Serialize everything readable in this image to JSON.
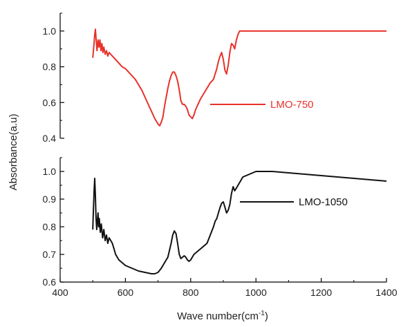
{
  "chart_data": [
    {
      "type": "line",
      "panel": "top",
      "ylim": [
        0.4,
        1.1
      ],
      "yticks": [
        "0.4",
        "0.6",
        "0.8",
        "1.0"
      ],
      "xlim": [
        400,
        1400
      ],
      "series": [
        {
          "name": "LMO-750",
          "color": "#e8302a",
          "x": [
            500,
            503,
            506,
            508,
            510,
            513,
            516,
            519,
            522,
            525,
            528,
            531,
            534,
            538,
            542,
            546,
            550,
            555,
            560,
            565,
            570,
            580,
            590,
            600,
            610,
            620,
            630,
            640,
            650,
            660,
            670,
            680,
            690,
            700,
            705,
            710,
            715,
            720,
            725,
            730,
            735,
            740,
            745,
            750,
            755,
            760,
            765,
            770,
            775,
            780,
            785,
            790,
            795,
            800,
            805,
            810,
            815,
            820,
            825,
            830,
            840,
            850,
            860,
            870,
            880,
            885,
            890,
            895,
            900,
            905,
            910,
            915,
            920,
            925,
            930,
            935,
            940,
            945,
            950,
            960,
            970,
            980,
            990,
            1000,
            1100,
            1200,
            1300,
            1400
          ],
          "y": [
            0.85,
            0.91,
            0.98,
            1.01,
            0.96,
            0.89,
            0.95,
            0.91,
            0.95,
            0.89,
            0.93,
            0.88,
            0.91,
            0.87,
            0.89,
            0.86,
            0.88,
            0.87,
            0.86,
            0.85,
            0.84,
            0.82,
            0.8,
            0.79,
            0.77,
            0.75,
            0.73,
            0.7,
            0.67,
            0.63,
            0.59,
            0.55,
            0.51,
            0.48,
            0.47,
            0.49,
            0.52,
            0.58,
            0.63,
            0.68,
            0.72,
            0.75,
            0.77,
            0.77,
            0.75,
            0.72,
            0.67,
            0.61,
            0.59,
            0.59,
            0.58,
            0.56,
            0.53,
            0.52,
            0.51,
            0.53,
            0.56,
            0.58,
            0.6,
            0.62,
            0.65,
            0.68,
            0.71,
            0.73,
            0.79,
            0.83,
            0.86,
            0.88,
            0.84,
            0.78,
            0.76,
            0.81,
            0.88,
            0.93,
            0.92,
            0.9,
            0.95,
            0.98,
            1.0,
            1.0,
            1.0,
            1.0,
            1.0,
            1.0,
            1.0,
            1.0,
            1.0,
            1.0
          ]
        }
      ]
    },
    {
      "type": "line",
      "panel": "bottom",
      "ylim": [
        0.6,
        1.05
      ],
      "yticks": [
        "0.6",
        "0.7",
        "0.8",
        "0.9",
        "1.0"
      ],
      "xlim": [
        400,
        1400
      ],
      "xticks": [
        "400",
        "600",
        "800",
        "1000",
        "1200",
        "1400"
      ],
      "xlabel": "Wave number(cm",
      "xlabel_sup": "-1",
      "xlabel_end": ")",
      "series": [
        {
          "name": "LMO-1050",
          "color": "#111111",
          "x": [
            500,
            502,
            504,
            506,
            508,
            510,
            512,
            514,
            516,
            518,
            520,
            523,
            526,
            530,
            534,
            538,
            542,
            546,
            550,
            555,
            560,
            565,
            570,
            580,
            590,
            600,
            620,
            640,
            660,
            680,
            690,
            700,
            710,
            720,
            730,
            740,
            745,
            750,
            755,
            760,
            765,
            770,
            775,
            780,
            785,
            790,
            795,
            800,
            810,
            820,
            830,
            840,
            850,
            860,
            870,
            875,
            880,
            885,
            890,
            895,
            900,
            905,
            910,
            915,
            920,
            925,
            930,
            935,
            940,
            950,
            960,
            980,
            1000,
            1050,
            1100,
            1150,
            1200,
            1250,
            1300,
            1350,
            1400
          ],
          "y": [
            0.79,
            0.86,
            0.93,
            0.975,
            0.91,
            0.83,
            0.79,
            0.82,
            0.85,
            0.8,
            0.83,
            0.78,
            0.81,
            0.76,
            0.79,
            0.75,
            0.77,
            0.74,
            0.76,
            0.75,
            0.74,
            0.72,
            0.7,
            0.68,
            0.67,
            0.66,
            0.65,
            0.64,
            0.635,
            0.63,
            0.63,
            0.635,
            0.65,
            0.67,
            0.69,
            0.74,
            0.77,
            0.785,
            0.775,
            0.74,
            0.7,
            0.685,
            0.69,
            0.695,
            0.69,
            0.68,
            0.675,
            0.68,
            0.7,
            0.71,
            0.72,
            0.73,
            0.74,
            0.77,
            0.8,
            0.82,
            0.83,
            0.85,
            0.87,
            0.885,
            0.89,
            0.87,
            0.85,
            0.86,
            0.88,
            0.92,
            0.945,
            0.93,
            0.94,
            0.96,
            0.98,
            0.99,
            1.0,
            1.0,
            0.995,
            0.99,
            0.985,
            0.98,
            0.975,
            0.97,
            0.965
          ]
        }
      ]
    }
  ],
  "ylabel": "Absorbance(a.u)"
}
